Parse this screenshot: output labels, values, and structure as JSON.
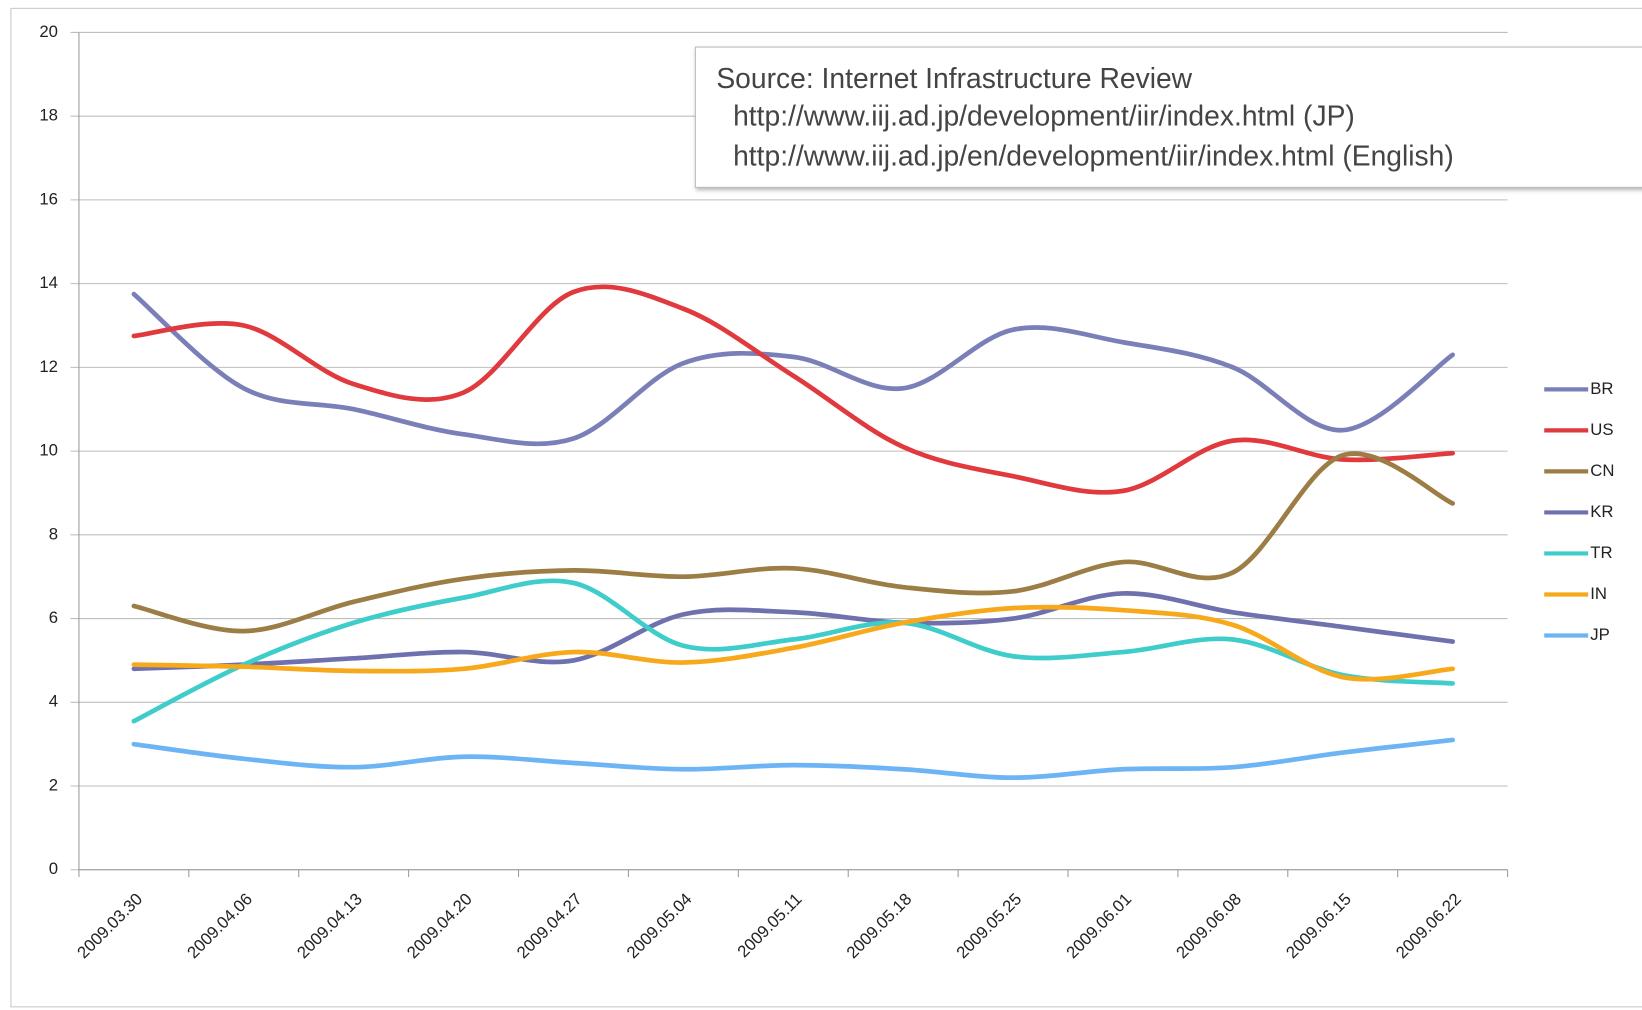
{
  "chart_data": {
    "type": "line",
    "annotation": [
      "Source: Internet Infrastructure Review",
      "http://www.iij.ad.jp/development/iir/index.html (JP)",
      "http://www.iij.ad.jp/en/development/iir/index.html (English)"
    ],
    "categories": [
      "2009.03.30",
      "2009.04.06",
      "2009.04.13",
      "2009.04.20",
      "2009.04.27",
      "2009.05.04",
      "2009.05.11",
      "2009.05.18",
      "2009.05.25",
      "2009.06.01",
      "2009.06.08",
      "2009.06.15",
      "2009.06.22"
    ],
    "series": [
      {
        "name": "BR",
        "color": "#7b7fb8",
        "values": [
          13.75,
          11.5,
          11.0,
          10.4,
          10.3,
          12.1,
          12.25,
          11.5,
          12.9,
          12.6,
          12.0,
          10.5,
          12.3
        ]
      },
      {
        "name": "US",
        "color": "#e03a3e",
        "values": [
          12.75,
          13.0,
          11.6,
          11.4,
          13.8,
          13.4,
          11.8,
          10.1,
          9.4,
          9.05,
          10.25,
          9.8,
          9.95
        ]
      },
      {
        "name": "CN",
        "color": "#9b7d45",
        "values": [
          6.3,
          5.7,
          6.4,
          6.95,
          7.15,
          7.0,
          7.2,
          6.75,
          6.65,
          7.35,
          7.1,
          9.9,
          8.75
        ]
      },
      {
        "name": "KR",
        "color": "#6e71ad",
        "values": [
          4.8,
          4.9,
          5.05,
          5.2,
          5.0,
          6.1,
          6.15,
          5.9,
          6.0,
          6.6,
          6.15,
          5.8,
          5.45
        ]
      },
      {
        "name": "TR",
        "color": "#3ecdcb",
        "values": [
          3.55,
          4.9,
          5.9,
          6.5,
          6.85,
          5.35,
          5.5,
          5.9,
          5.1,
          5.2,
          5.5,
          4.65,
          4.45
        ]
      },
      {
        "name": "IN",
        "color": "#f7a81b",
        "values": [
          4.9,
          4.85,
          4.75,
          4.8,
          5.2,
          4.95,
          5.3,
          5.9,
          6.25,
          6.2,
          5.85,
          4.6,
          4.8
        ]
      },
      {
        "name": "JP",
        "color": "#6db4f5",
        "values": [
          3.0,
          2.65,
          2.45,
          2.7,
          2.55,
          2.4,
          2.5,
          2.4,
          2.2,
          2.4,
          2.45,
          2.8,
          3.1
        ]
      }
    ],
    "ylim": [
      0,
      20
    ],
    "yticks": [
      0,
      2,
      4,
      6,
      8,
      10,
      12,
      14,
      16,
      18,
      20
    ],
    "grid": true,
    "legend": "right"
  }
}
